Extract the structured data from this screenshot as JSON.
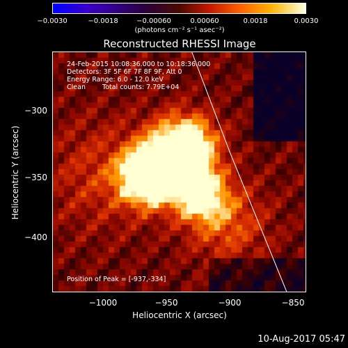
{
  "chart_data": {
    "type": "heatmap",
    "title": "Reconstructed RHESSI Image",
    "xlabel": "Heliocentric X (arcsec)",
    "ylabel": "Heliocentric Y (arcsec)",
    "xlim": [
      -1040,
      -840
    ],
    "ylim": [
      -445,
      -265
    ],
    "xticks": [
      -1000,
      -950,
      -900,
      -850
    ],
    "yticks": [
      -300,
      -350,
      -400
    ],
    "xtick_labels": [
      "−1000",
      "−950",
      "−900",
      "−850"
    ],
    "ytick_labels": [
      "−300",
      "−350",
      "−400"
    ],
    "colorbar": {
      "range": [
        -0.003,
        0.003
      ],
      "ticks": [
        "−0.0030",
        "−0.0018",
        "−0.00060",
        "0.00060",
        "0.0018",
        "0.0030"
      ],
      "unit": "(photons cm⁻² s⁻¹ asec⁻²)"
    },
    "annotations": {
      "time_range": "24-Feb-2015 10:08:36.000 to 10:18:36.000",
      "detectors": "Detectors: 3F 5F 6F 7F 8F 9F, Att 0",
      "energy": "Energy Range: 6.0 - 12.0 keV",
      "method": "Clean",
      "counts": "Total counts: 7.79E+04",
      "peak": "Position of Peak = [-937,-334]"
    },
    "peak": [
      -937,
      -334
    ],
    "limb_arc": [
      [
        -930,
        -265
      ],
      [
        -900,
        -340
      ],
      [
        -870,
        -410
      ],
      [
        -855,
        -445
      ]
    ]
  },
  "footer": {
    "date": "10-Aug-2017 05:47"
  }
}
